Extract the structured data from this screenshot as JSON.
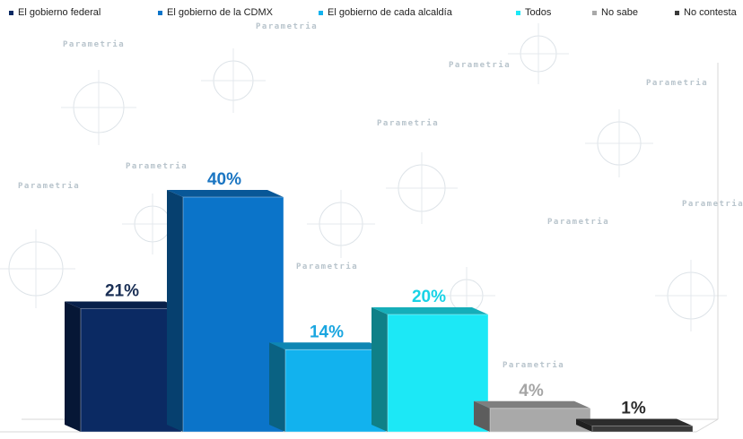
{
  "chart_data": {
    "type": "bar",
    "categories": [
      "El gobierno federal",
      "El gobierno de la CDMX",
      "El gobierno de cada alcaldía",
      "Todos",
      "No sabe",
      "No contesta"
    ],
    "values": [
      21,
      40,
      14,
      20,
      4,
      1
    ],
    "data_labels": [
      "21%",
      "40%",
      "14%",
      "20%",
      "4%",
      "1%"
    ],
    "colors": [
      "#0b2a63",
      "#0b74c9",
      "#12b2ee",
      "#1ce8f6",
      "#a9a9a9",
      "#3a3a3a"
    ],
    "label_colors": [
      "#1a2f55",
      "#1a75c2",
      "#1aa6e0",
      "#18d3e6",
      "#a5a5a5",
      "#2b2b2b"
    ],
    "ylim": [
      0,
      44
    ],
    "legend_position": "top",
    "style": "3d-bar",
    "grid": false,
    "watermark_text": "Parametria"
  }
}
